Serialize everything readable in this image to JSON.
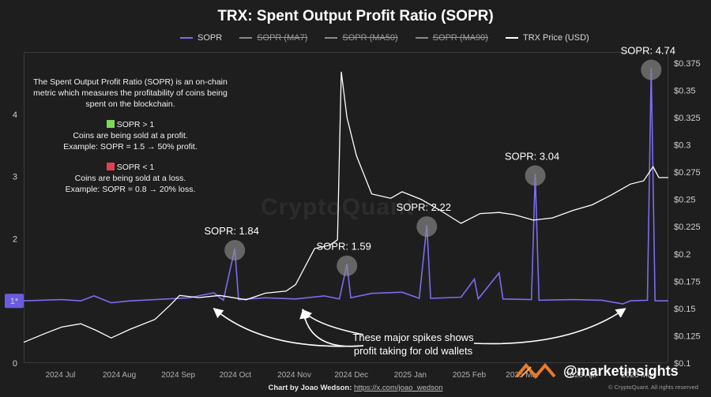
{
  "title": "TRX: Spent Output Profit Ratio (SOPR)",
  "legend": [
    {
      "label": "SOPR",
      "color": "#7b6cf0",
      "struck": false
    },
    {
      "label": "SOPR (MA7)",
      "color": "#8a8a8a",
      "struck": true
    },
    {
      "label": "SOPR (MA50)",
      "color": "#8a8a8a",
      "struck": true
    },
    {
      "label": "SOPR (MA90)",
      "color": "#8a8a8a",
      "struck": true
    },
    {
      "label": "TRX Price (USD)",
      "color": "#ffffff",
      "struck": false
    }
  ],
  "info": {
    "intro": "The Spent Output Profit Ratio (SOPR) is an on-chain metric which measures the profitability of coins being spent on the blockchain.",
    "gt_heading": "SOPR > 1",
    "gt_text1": "Coins are being sold at a profit.",
    "gt_text2": "Example: SOPR = 1.5 → 50% profit.",
    "lt_heading": "SOPR < 1",
    "lt_text1": "Coins are being sold at a loss.",
    "lt_text2": "Example: SOPR = 0.8 → 20% loss.",
    "gt_color": "#7ed957",
    "lt_color": "#e0414f"
  },
  "annotation": "These major spikes shows profit taking for old wallets",
  "watermark": "CryptoQuant",
  "footer": {
    "prefix": "Chart by Joao Wedson:",
    "link": "https://x.com/joao_wedson"
  },
  "handle": "@marketinsights",
  "copyright": "© CryptoQuant. All rights reserved",
  "current_marker": "1*",
  "chart_data": {
    "type": "line",
    "title": "TRX: Spent Output Profit Ratio (SOPR)",
    "x_ticks": [
      "2024 Jul",
      "2024 Aug",
      "2024 Sep",
      "2024 Oct",
      "2024 Nov",
      "2024 Dec",
      "2025 Jan",
      "2025 Feb",
      "2025 Mar",
      "2025 Apr",
      "2025 May"
    ],
    "xlim": [
      "2024-06-20",
      "2025-05-25"
    ],
    "y_left": {
      "ticks": [
        "0",
        "2",
        "3",
        "4"
      ],
      "range": [
        0,
        5.0
      ]
    },
    "y_right": {
      "ticks": [
        "$0.1",
        "$0.125",
        "$0.15",
        "$0.175",
        "$0.2",
        "$0.225",
        "$0.25",
        "$0.275",
        "$0.3",
        "$0.325",
        "$0.35",
        "$0.375"
      ],
      "range": [
        0.1,
        0.385
      ]
    },
    "sopr": {
      "name": "SOPR",
      "baseline": 1.0,
      "points": [
        [
          "2024-06-20",
          1.0
        ],
        [
          "2024-07-10",
          1.02
        ],
        [
          "2024-07-20",
          1.0
        ],
        [
          "2024-07-27",
          1.08
        ],
        [
          "2024-08-05",
          0.97
        ],
        [
          "2024-08-15",
          1.0
        ],
        [
          "2024-09-15",
          1.05
        ],
        [
          "2024-09-28",
          1.13
        ],
        [
          "2024-10-03",
          1.01
        ],
        [
          "2024-10-09",
          1.84
        ],
        [
          "2024-10-11",
          1.02
        ],
        [
          "2024-10-25",
          1.05
        ],
        [
          "2024-11-10",
          1.03
        ],
        [
          "2024-11-25",
          1.08
        ],
        [
          "2024-12-03",
          1.03
        ],
        [
          "2024-12-07",
          1.59
        ],
        [
          "2024-12-09",
          1.05
        ],
        [
          "2024-12-20",
          1.12
        ],
        [
          "2025-01-05",
          1.14
        ],
        [
          "2025-01-14",
          1.04
        ],
        [
          "2025-01-18",
          2.22
        ],
        [
          "2025-01-20",
          1.04
        ],
        [
          "2025-02-05",
          1.06
        ],
        [
          "2025-02-12",
          1.35
        ],
        [
          "2025-02-14",
          1.03
        ],
        [
          "2025-02-25",
          1.45
        ],
        [
          "2025-02-27",
          1.03
        ],
        [
          "2025-03-14",
          1.02
        ],
        [
          "2025-03-16",
          3.04
        ],
        [
          "2025-03-18",
          1.01
        ],
        [
          "2025-04-05",
          1.02
        ],
        [
          "2025-04-20",
          1.01
        ],
        [
          "2025-05-01",
          0.95
        ],
        [
          "2025-05-05",
          1.0
        ],
        [
          "2025-05-14",
          1.01
        ],
        [
          "2025-05-16",
          4.74
        ],
        [
          "2025-05-18",
          1.0
        ],
        [
          "2025-05-25",
          1.0
        ]
      ]
    },
    "price": {
      "name": "TRX Price (USD)",
      "points": [
        [
          "2024-06-20",
          0.119
        ],
        [
          "2024-07-01",
          0.127
        ],
        [
          "2024-07-10",
          0.133
        ],
        [
          "2024-07-20",
          0.136
        ],
        [
          "2024-07-28",
          0.13
        ],
        [
          "2024-08-05",
          0.123
        ],
        [
          "2024-08-15",
          0.131
        ],
        [
          "2024-08-28",
          0.14
        ],
        [
          "2024-09-05",
          0.153
        ],
        [
          "2024-09-10",
          0.162
        ],
        [
          "2024-09-20",
          0.16
        ],
        [
          "2024-10-01",
          0.162
        ],
        [
          "2024-10-15",
          0.158
        ],
        [
          "2024-10-25",
          0.164
        ],
        [
          "2024-11-05",
          0.166
        ],
        [
          "2024-11-10",
          0.172
        ],
        [
          "2024-11-20",
          0.205
        ],
        [
          "2024-11-28",
          0.208
        ],
        [
          "2024-12-02",
          0.213
        ],
        [
          "2024-12-04",
          0.367
        ],
        [
          "2024-12-07",
          0.325
        ],
        [
          "2024-12-12",
          0.29
        ],
        [
          "2024-12-20",
          0.255
        ],
        [
          "2024-12-30",
          0.251
        ],
        [
          "2025-01-05",
          0.257
        ],
        [
          "2025-01-15",
          0.25
        ],
        [
          "2025-01-25",
          0.24
        ],
        [
          "2025-02-05",
          0.228
        ],
        [
          "2025-02-15",
          0.237
        ],
        [
          "2025-02-25",
          0.238
        ],
        [
          "2025-03-05",
          0.236
        ],
        [
          "2025-03-15",
          0.231
        ],
        [
          "2025-03-25",
          0.233
        ],
        [
          "2025-04-05",
          0.24
        ],
        [
          "2025-04-15",
          0.245
        ],
        [
          "2025-04-25",
          0.254
        ],
        [
          "2025-05-05",
          0.264
        ],
        [
          "2025-05-12",
          0.267
        ],
        [
          "2025-05-17",
          0.28
        ],
        [
          "2025-05-20",
          0.27
        ],
        [
          "2025-05-25",
          0.27
        ]
      ]
    },
    "callouts": [
      {
        "label": "SOPR: 1.84",
        "date": "2024-10-09",
        "value": 1.84
      },
      {
        "label": "SOPR: 1.59",
        "date": "2024-12-07",
        "value": 1.59
      },
      {
        "label": "SOPR: 2.22",
        "date": "2025-01-18",
        "value": 2.22
      },
      {
        "label": "SOPR: 3.04",
        "date": "2025-03-16",
        "value": 3.04
      },
      {
        "label": "SOPR: 4.74",
        "date": "2025-05-16",
        "value": 4.74
      }
    ],
    "colors": {
      "sopr": "#7b6cf0",
      "price": "#ffffff",
      "grid": "#333333"
    }
  }
}
